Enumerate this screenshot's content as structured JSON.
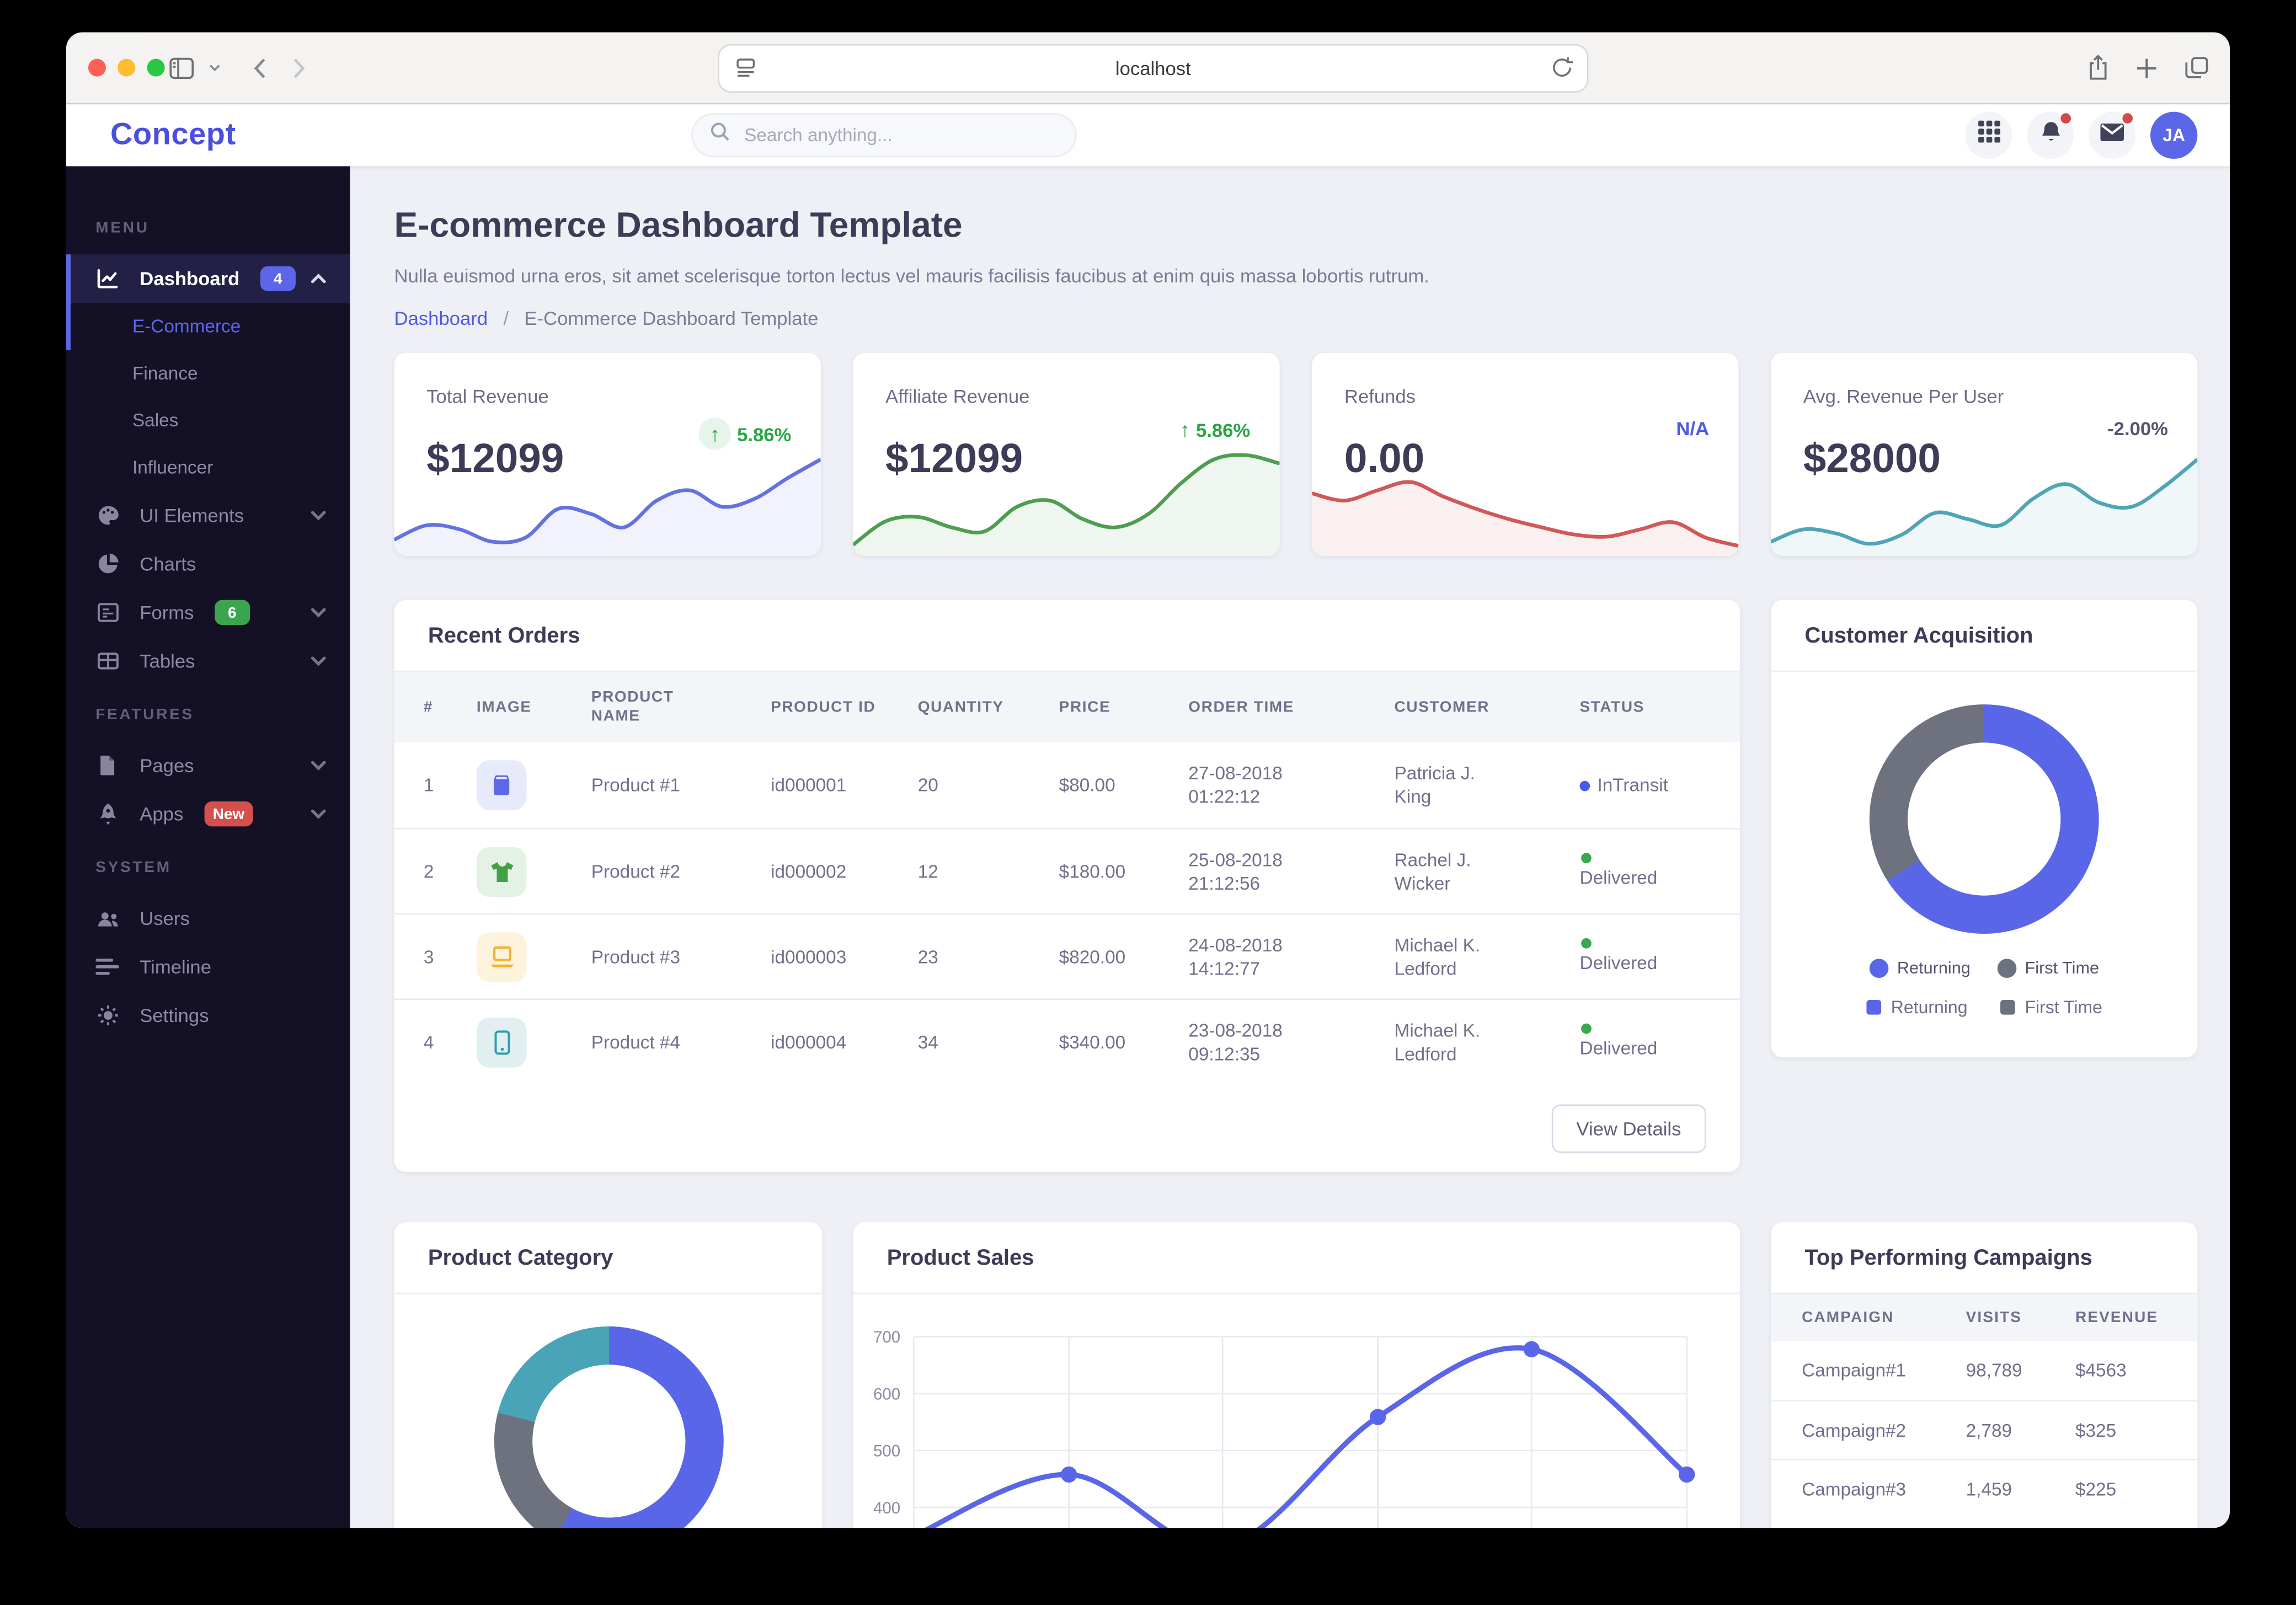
{
  "browser": {
    "url": "localhost"
  },
  "navbar": {
    "logo": "Concept",
    "search_placeholder": "Search anything...",
    "avatar_initials": "JA",
    "accent_color": "#5b66e8"
  },
  "sidebar": {
    "sections": [
      {
        "label": "MENU",
        "items": [
          {
            "label": "Dashboard",
            "icon": "chart-line-icon",
            "badge": "4",
            "badge_color": "#5d66e8",
            "chevron": "up",
            "active": true,
            "children": [
              {
                "label": "E-Commerce",
                "active": true
              },
              {
                "label": "Finance"
              },
              {
                "label": "Sales"
              },
              {
                "label": "Influencer"
              }
            ]
          },
          {
            "label": "UI Elements",
            "icon": "palette-icon",
            "chevron": "down"
          },
          {
            "label": "Charts",
            "icon": "pie-chart-icon"
          },
          {
            "label": "Forms",
            "icon": "form-icon",
            "badge": "6",
            "badge_color": "#3aa44e",
            "chevron": "down"
          },
          {
            "label": "Tables",
            "icon": "table-icon",
            "chevron": "down"
          }
        ]
      },
      {
        "label": "FEATURES",
        "items": [
          {
            "label": "Pages",
            "icon": "file-icon",
            "chevron": "down"
          },
          {
            "label": "Apps",
            "icon": "rocket-icon",
            "badge": "New",
            "badge_color": "#d4504c",
            "chevron": "down"
          }
        ]
      },
      {
        "label": "SYSTEM",
        "items": [
          {
            "label": "Users",
            "icon": "users-icon"
          },
          {
            "label": "Timeline",
            "icon": "timeline-icon"
          },
          {
            "label": "Settings",
            "icon": "gear-icon"
          }
        ]
      }
    ]
  },
  "page": {
    "title": "E-commerce Dashboard Template",
    "subtitle": "Nulla euismod urna eros, sit amet scelerisque torton lectus vel mauris facilisis faucibus at enim quis massa lobortis rutrum.",
    "breadcrumb": {
      "home": "Dashboard",
      "separator": "/",
      "current": "E-Commerce Dashboard Template"
    }
  },
  "stat_cards": [
    {
      "label": "Total Revenue",
      "value": "$12099",
      "delta": "5.86%",
      "delta_dir": "up",
      "delta_color": "#28a745",
      "arrow_circled": true,
      "spark_color": "#6472e0",
      "spark_values": [
        10,
        24,
        20,
        8,
        12,
        40,
        35,
        22,
        48,
        58,
        42,
        50,
        70,
        88
      ]
    },
    {
      "label": "Affiliate Revenue",
      "value": "$12099",
      "delta": "5.86%",
      "delta_dir": "up",
      "delta_color": "#28a745",
      "arrow_circled": false,
      "spark_color": "#4d9e50",
      "spark_values": [
        5,
        28,
        32,
        22,
        18,
        42,
        48,
        30,
        22,
        35,
        65,
        88,
        92,
        84
      ]
    },
    {
      "label": "Refunds",
      "value": "0.00",
      "delta": "N/A",
      "delta_dir": "none",
      "delta_color": "#5059e5",
      "arrow_circled": false,
      "spark_color": "#d25757",
      "spark_values": [
        55,
        48,
        58,
        66,
        52,
        40,
        30,
        22,
        15,
        13,
        20,
        27,
        12,
        4
      ]
    },
    {
      "label": "Avg. Revenue Per User",
      "value": "$28000",
      "delta": "-2.00%",
      "delta_dir": "none",
      "delta_color": "#55556d",
      "arrow_circled": false,
      "spark_color": "#4fa5b5",
      "spark_values": [
        8,
        20,
        16,
        6,
        15,
        36,
        30,
        24,
        50,
        64,
        46,
        42,
        62,
        88
      ]
    }
  ],
  "recent_orders": {
    "title": "Recent Orders",
    "columns": [
      "#",
      "IMAGE",
      "PRODUCT NAME",
      "PRODUCT ID",
      "QUANTITY",
      "PRICE",
      "ORDER TIME",
      "CUSTOMER",
      "STATUS"
    ],
    "rows": [
      {
        "num": "1",
        "icon": "book-product-icon",
        "tile_bg": "#e7eafb",
        "icon_color": "#5b68e8",
        "name": "Product #1",
        "id": "id000001",
        "qty": "20",
        "price": "$80.00",
        "time": "27-08-2018 01:22:12",
        "customer": "Patricia J. King",
        "status": "InTransit",
        "status_color": "#4a5ae8",
        "stacked": false
      },
      {
        "num": "2",
        "icon": "tshirt-product-icon",
        "tile_bg": "#e3f2e5",
        "icon_color": "#43a047",
        "name": "Product #2",
        "id": "id000002",
        "qty": "12",
        "price": "$180.00",
        "time": "25-08-2018 21:12:56",
        "customer": "Rachel J. Wicker",
        "status": "Delivered",
        "status_color": "#37a84d",
        "stacked": true
      },
      {
        "num": "3",
        "icon": "laptop-product-icon",
        "tile_bg": "#fdf3dc",
        "icon_color": "#f0b42c",
        "name": "Product #3",
        "id": "id000003",
        "qty": "23",
        "price": "$820.00",
        "time": "24-08-2018 14:12:77",
        "customer": "Michael K. Ledford",
        "status": "Delivered",
        "status_color": "#37a84d",
        "stacked": true
      },
      {
        "num": "4",
        "icon": "mobile-product-icon",
        "tile_bg": "#e1eff1",
        "icon_color": "#2f9db0",
        "name": "Product #4",
        "id": "id000004",
        "qty": "34",
        "price": "$340.00",
        "time": "23-08-2018 09:12:35",
        "customer": "Michael K. Ledford",
        "status": "Delivered",
        "status_color": "#37a84d",
        "stacked": true
      }
    ],
    "footer_button": "View Details"
  },
  "chart_data": [
    {
      "type": "pie",
      "title": "Customer Acquisition",
      "labels": [
        "Returning",
        "First Time"
      ],
      "values": [
        66,
        34
      ],
      "colors": [
        "#5a66e8",
        "#6d727e"
      ],
      "legend_position": "bottom",
      "donut": true
    },
    {
      "type": "pie",
      "title": "Product Category",
      "values": [
        58,
        21,
        21
      ],
      "colors": [
        "#5a66e8",
        "#6d727e",
        "#49a4b8"
      ],
      "donut": true
    },
    {
      "type": "line",
      "title": "Product Sales",
      "y_ticks": [
        400,
        500,
        600,
        700
      ],
      "grid": true,
      "color": "#5a66e8",
      "values": [
        350,
        458,
        330,
        559,
        678,
        458
      ],
      "marker_points": [
        1,
        3,
        4,
        5
      ]
    }
  ],
  "campaigns": {
    "title": "Top Performing Campaigns",
    "columns": [
      "CAMPAIGN",
      "VISITS",
      "REVENUE"
    ],
    "rows": [
      [
        "Campaign#1",
        "98,789",
        "$4563"
      ],
      [
        "Campaign#2",
        "2,789",
        "$325"
      ],
      [
        "Campaign#3",
        "1,459",
        "$225"
      ]
    ]
  }
}
